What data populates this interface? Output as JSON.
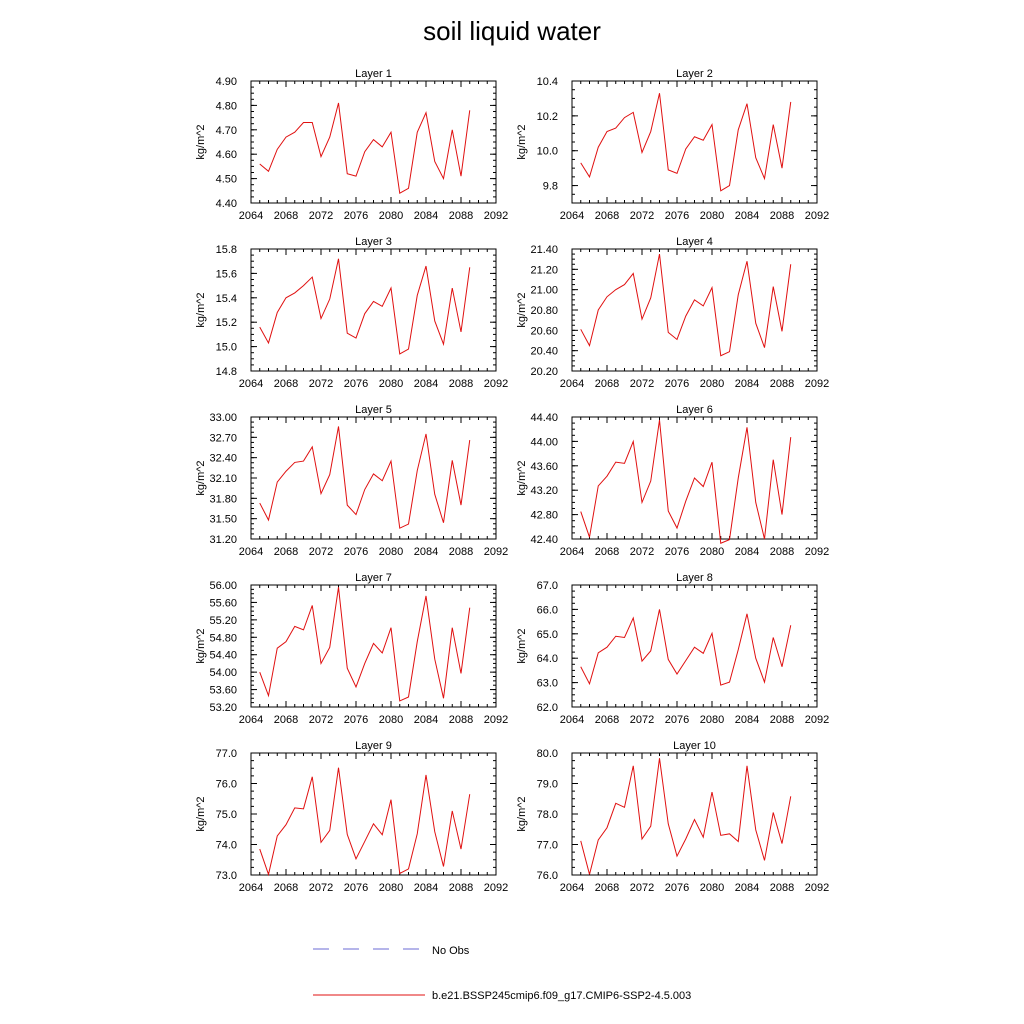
{
  "title": "soil liquid water",
  "legend": {
    "obs_label": "No Obs",
    "obs_color": "#6b6bd6",
    "model_label": "b.e21.BSSP245cmip6.f09_g17.CMIP6-SSP2-4.5.003",
    "model_color": "#e01010"
  },
  "chart_data": [
    {
      "type": "line",
      "title": "Layer 1",
      "ylabel": "kg/m^2",
      "xlim": [
        2064,
        2092
      ],
      "ylim": [
        4.4,
        4.9
      ],
      "xticks": [
        "2064",
        "2068",
        "2072",
        "2076",
        "2080",
        "2084",
        "2088",
        "2092"
      ],
      "yticks": [
        "4.40",
        "4.50",
        "4.60",
        "4.70",
        "4.80",
        "4.90"
      ],
      "x": [
        2065,
        2066,
        2067,
        2068,
        2069,
        2070,
        2071,
        2072,
        2073,
        2074,
        2075,
        2076,
        2077,
        2078,
        2079,
        2080,
        2081,
        2082,
        2083,
        2084,
        2085,
        2086,
        2087,
        2088,
        2089
      ],
      "series": [
        {
          "name": "b.e21.BSSP245cmip6.f09_g17.CMIP6-SSP2-4.5.003",
          "values": [
            4.56,
            4.53,
            4.62,
            4.67,
            4.69,
            4.73,
            4.73,
            4.59,
            4.67,
            4.81,
            4.52,
            4.51,
            4.61,
            4.66,
            4.63,
            4.69,
            4.44,
            4.46,
            4.69,
            4.77,
            4.57,
            4.5,
            4.7,
            4.51,
            4.78
          ]
        }
      ]
    },
    {
      "type": "line",
      "title": "Layer 2",
      "ylabel": "kg/m^2",
      "xlim": [
        2064,
        2092
      ],
      "ylim": [
        9.7,
        10.4
      ],
      "xticks": [
        "2064",
        "2068",
        "2072",
        "2076",
        "2080",
        "2084",
        "2088",
        "2092"
      ],
      "yticks": [
        "9.8",
        "10.0",
        "10.2",
        "10.4"
      ],
      "x": [
        2065,
        2066,
        2067,
        2068,
        2069,
        2070,
        2071,
        2072,
        2073,
        2074,
        2075,
        2076,
        2077,
        2078,
        2079,
        2080,
        2081,
        2082,
        2083,
        2084,
        2085,
        2086,
        2087,
        2088,
        2089
      ],
      "series": [
        {
          "name": "b.e21.BSSP245cmip6.f09_g17.CMIP6-SSP2-4.5.003",
          "values": [
            9.93,
            9.85,
            10.02,
            10.11,
            10.13,
            10.19,
            10.22,
            9.99,
            10.11,
            10.33,
            9.89,
            9.87,
            10.01,
            10.08,
            10.06,
            10.15,
            9.77,
            9.8,
            10.12,
            10.27,
            9.96,
            9.84,
            10.15,
            9.9,
            10.28
          ]
        }
      ]
    },
    {
      "type": "line",
      "title": "Layer 3",
      "ylabel": "kg/m^2",
      "xlim": [
        2064,
        2092
      ],
      "ylim": [
        14.8,
        15.8
      ],
      "xticks": [
        "2064",
        "2068",
        "2072",
        "2076",
        "2080",
        "2084",
        "2088",
        "2092"
      ],
      "yticks": [
        "14.8",
        "15.0",
        "15.2",
        "15.4",
        "15.6",
        "15.8"
      ],
      "x": [
        2065,
        2066,
        2067,
        2068,
        2069,
        2070,
        2071,
        2072,
        2073,
        2074,
        2075,
        2076,
        2077,
        2078,
        2079,
        2080,
        2081,
        2082,
        2083,
        2084,
        2085,
        2086,
        2087,
        2088,
        2089
      ],
      "series": [
        {
          "name": "b.e21.BSSP245cmip6.f09_g17.CMIP6-SSP2-4.5.003",
          "values": [
            15.16,
            15.03,
            15.28,
            15.4,
            15.44,
            15.5,
            15.57,
            15.23,
            15.39,
            15.72,
            15.11,
            15.07,
            15.27,
            15.37,
            15.33,
            15.48,
            14.94,
            14.98,
            15.42,
            15.66,
            15.21,
            15.02,
            15.48,
            15.12,
            15.65
          ]
        }
      ]
    },
    {
      "type": "line",
      "title": "Layer 4",
      "ylabel": "kg/m^2",
      "xlim": [
        2064,
        2092
      ],
      "ylim": [
        20.2,
        21.4
      ],
      "xticks": [
        "2064",
        "2068",
        "2072",
        "2076",
        "2080",
        "2084",
        "2088",
        "2092"
      ],
      "yticks": [
        "20.20",
        "20.40",
        "20.60",
        "20.80",
        "21.00",
        "21.20",
        "21.40"
      ],
      "x": [
        2065,
        2066,
        2067,
        2068,
        2069,
        2070,
        2071,
        2072,
        2073,
        2074,
        2075,
        2076,
        2077,
        2078,
        2079,
        2080,
        2081,
        2082,
        2083,
        2084,
        2085,
        2086,
        2087,
        2088,
        2089
      ],
      "series": [
        {
          "name": "b.e21.BSSP245cmip6.f09_g17.CMIP6-SSP2-4.5.003",
          "values": [
            20.61,
            20.45,
            20.8,
            20.93,
            21.0,
            21.05,
            21.16,
            20.71,
            20.92,
            21.35,
            20.58,
            20.51,
            20.74,
            20.9,
            20.84,
            21.02,
            20.35,
            20.39,
            20.95,
            21.28,
            20.67,
            20.43,
            21.03,
            20.59,
            21.25
          ]
        }
      ]
    },
    {
      "type": "line",
      "title": "Layer 5",
      "ylabel": "kg/m^2",
      "xlim": [
        2064,
        2092
      ],
      "ylim": [
        31.2,
        33.0
      ],
      "xticks": [
        "2064",
        "2068",
        "2072",
        "2076",
        "2080",
        "2084",
        "2088",
        "2092"
      ],
      "yticks": [
        "31.20",
        "31.50",
        "31.80",
        "32.10",
        "32.40",
        "32.70",
        "33.00"
      ],
      "x": [
        2065,
        2066,
        2067,
        2068,
        2069,
        2070,
        2071,
        2072,
        2073,
        2074,
        2075,
        2076,
        2077,
        2078,
        2079,
        2080,
        2081,
        2082,
        2083,
        2084,
        2085,
        2086,
        2087,
        2088,
        2089
      ],
      "series": [
        {
          "name": "b.e21.BSSP245cmip6.f09_g17.CMIP6-SSP2-4.5.003",
          "values": [
            31.73,
            31.48,
            32.04,
            32.2,
            32.33,
            32.35,
            32.56,
            31.87,
            32.15,
            32.86,
            31.7,
            31.56,
            31.93,
            32.16,
            32.06,
            32.35,
            31.36,
            31.42,
            32.21,
            32.75,
            31.86,
            31.44,
            32.36,
            31.7,
            32.66
          ]
        }
      ]
    },
    {
      "type": "line",
      "title": "Layer 6",
      "ylabel": "kg/m^2",
      "xlim": [
        2064,
        2092
      ],
      "ylim": [
        42.4,
        44.4
      ],
      "xticks": [
        "2064",
        "2068",
        "2072",
        "2076",
        "2080",
        "2084",
        "2088",
        "2092"
      ],
      "yticks": [
        "42.40",
        "42.80",
        "43.20",
        "43.60",
        "44.00",
        "44.40"
      ],
      "x": [
        2065,
        2066,
        2067,
        2068,
        2069,
        2070,
        2071,
        2072,
        2073,
        2074,
        2075,
        2076,
        2077,
        2078,
        2079,
        2080,
        2081,
        2082,
        2083,
        2084,
        2085,
        2086,
        2087,
        2088,
        2089
      ],
      "series": [
        {
          "name": "b.e21.BSSP245cmip6.f09_g17.CMIP6-SSP2-4.5.003",
          "values": [
            42.85,
            42.43,
            43.27,
            43.43,
            43.66,
            43.64,
            44.0,
            43.0,
            43.35,
            44.35,
            42.86,
            42.58,
            43.02,
            43.4,
            43.26,
            43.66,
            42.33,
            42.39,
            43.4,
            44.23,
            43.0,
            42.4,
            43.7,
            42.8,
            44.07
          ]
        }
      ]
    },
    {
      "type": "line",
      "title": "Layer 7",
      "ylabel": "kg/m^2",
      "xlim": [
        2064,
        2092
      ],
      "ylim": [
        53.2,
        56.0
      ],
      "xticks": [
        "2064",
        "2068",
        "2072",
        "2076",
        "2080",
        "2084",
        "2088",
        "2092"
      ],
      "yticks": [
        "53.20",
        "53.60",
        "54.00",
        "54.40",
        "54.80",
        "55.20",
        "55.60",
        "56.00"
      ],
      "x": [
        2065,
        2066,
        2067,
        2068,
        2069,
        2070,
        2071,
        2072,
        2073,
        2074,
        2075,
        2076,
        2077,
        2078,
        2079,
        2080,
        2081,
        2082,
        2083,
        2084,
        2085,
        2086,
        2087,
        2088,
        2089
      ],
      "series": [
        {
          "name": "b.e21.BSSP245cmip6.f09_g17.CMIP6-SSP2-4.5.003",
          "values": [
            54.0,
            53.46,
            54.55,
            54.7,
            55.05,
            54.97,
            55.53,
            54.2,
            54.57,
            55.95,
            54.09,
            53.66,
            54.2,
            54.66,
            54.44,
            55.02,
            53.34,
            53.43,
            54.7,
            55.75,
            54.3,
            53.4,
            55.02,
            53.97,
            55.48
          ]
        }
      ]
    },
    {
      "type": "line",
      "title": "Layer 8",
      "ylabel": "kg/m^2",
      "xlim": [
        2064,
        2092
      ],
      "ylim": [
        62.0,
        67.0
      ],
      "xticks": [
        "2064",
        "2068",
        "2072",
        "2076",
        "2080",
        "2084",
        "2088",
        "2092"
      ],
      "yticks": [
        "62.0",
        "63.0",
        "64.0",
        "65.0",
        "66.0",
        "67.0"
      ],
      "x": [
        2065,
        2066,
        2067,
        2068,
        2069,
        2070,
        2071,
        2072,
        2073,
        2074,
        2075,
        2076,
        2077,
        2078,
        2079,
        2080,
        2081,
        2082,
        2083,
        2084,
        2085,
        2086,
        2087,
        2088,
        2089
      ],
      "series": [
        {
          "name": "b.e21.BSSP245cmip6.f09_g17.CMIP6-SSP2-4.5.003",
          "values": [
            63.65,
            62.95,
            64.22,
            64.45,
            64.9,
            64.85,
            65.65,
            63.88,
            64.3,
            66.0,
            63.95,
            63.35,
            63.9,
            64.45,
            64.2,
            65.02,
            62.9,
            63.02,
            64.35,
            65.82,
            64.0,
            63.02,
            64.85,
            63.65,
            65.35
          ]
        }
      ]
    },
    {
      "type": "line",
      "title": "Layer 9",
      "ylabel": "kg/m^2",
      "xlim": [
        2064,
        2092
      ],
      "ylim": [
        73.0,
        77.0
      ],
      "xticks": [
        "2064",
        "2068",
        "2072",
        "2076",
        "2080",
        "2084",
        "2088",
        "2092"
      ],
      "yticks": [
        "73.0",
        "74.0",
        "75.0",
        "76.0",
        "77.0"
      ],
      "x": [
        2065,
        2066,
        2067,
        2068,
        2069,
        2070,
        2071,
        2072,
        2073,
        2074,
        2075,
        2076,
        2077,
        2078,
        2079,
        2080,
        2081,
        2082,
        2083,
        2084,
        2085,
        2086,
        2087,
        2088,
        2089
      ],
      "series": [
        {
          "name": "b.e21.BSSP245cmip6.f09_g17.CMIP6-SSP2-4.5.003",
          "values": [
            73.85,
            73.02,
            74.28,
            74.65,
            75.2,
            75.17,
            76.22,
            74.07,
            74.46,
            76.52,
            74.33,
            73.53,
            74.1,
            74.68,
            74.32,
            75.47,
            73.05,
            73.2,
            74.35,
            76.28,
            74.42,
            73.28,
            75.1,
            73.85,
            75.65
          ]
        }
      ]
    },
    {
      "type": "line",
      "title": "Layer 10",
      "ylabel": "kg/m^2",
      "xlim": [
        2064,
        2092
      ],
      "ylim": [
        76.0,
        80.0
      ],
      "xticks": [
        "2064",
        "2068",
        "2072",
        "2076",
        "2080",
        "2084",
        "2088",
        "2092"
      ],
      "yticks": [
        "76.0",
        "77.0",
        "78.0",
        "79.0",
        "80.0"
      ],
      "x": [
        2065,
        2066,
        2067,
        2068,
        2069,
        2070,
        2071,
        2072,
        2073,
        2074,
        2075,
        2076,
        2077,
        2078,
        2079,
        2080,
        2081,
        2082,
        2083,
        2084,
        2085,
        2086,
        2087,
        2088,
        2089
      ],
      "series": [
        {
          "name": "b.e21.BSSP245cmip6.f09_g17.CMIP6-SSP2-4.5.003",
          "values": [
            77.12,
            76.02,
            77.15,
            77.55,
            78.35,
            78.22,
            79.58,
            77.18,
            77.6,
            79.83,
            77.68,
            76.62,
            77.18,
            77.82,
            77.24,
            78.72,
            77.3,
            77.35,
            77.1,
            79.58,
            77.48,
            76.48,
            78.05,
            77.03,
            78.58
          ]
        }
      ]
    }
  ]
}
